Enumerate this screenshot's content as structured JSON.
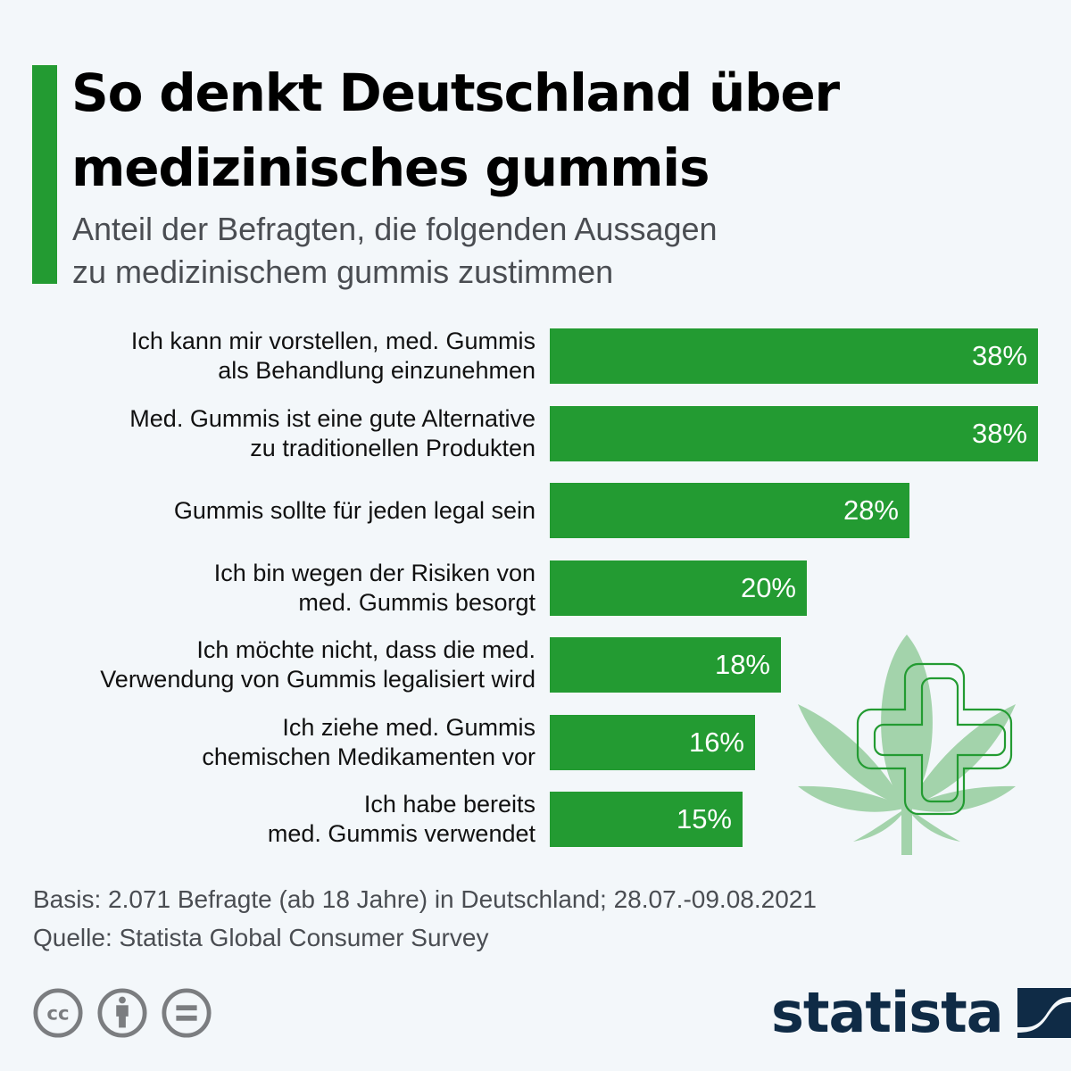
{
  "header": {
    "title_lines": [
      "So denkt Deutschland über",
      "medizinisches gummis"
    ],
    "subtitle_lines": [
      "Anteil der Befragten, die folgenden Aussagen",
      "zu medizinischem gummis  zustimmen"
    ]
  },
  "colors": {
    "accent": "#239b32",
    "bar": "#239b32",
    "background": "#f3f7fa",
    "leaf": "#a3d3ab",
    "cross_outline": "#239b32",
    "logo": "#0f2b46",
    "cc_icons": "#7b7d80"
  },
  "chart_data": {
    "type": "bar",
    "orientation": "horizontal",
    "title": "So denkt Deutschland über medizinisches gummis",
    "subtitle": "Anteil der Befragten, die folgenden Aussagen zu medizinischem gummis zustimmen",
    "xlabel": "",
    "ylabel": "",
    "unit": "%",
    "xlim": [
      0,
      38
    ],
    "grid": false,
    "categories": [
      [
        "Ich kann mir vorstellen, med.  Gummis",
        "als Behandlung einzunehmen"
      ],
      [
        "Med.  Gummis  ist eine gute Alternative",
        "zu traditionellen Produkten"
      ],
      [
        "Gummis  sollte für jeden legal sein"
      ],
      [
        "Ich bin wegen der Risiken von",
        "med.  Gummis  besorgt"
      ],
      [
        "Ich möchte nicht, dass die med.",
        "Verwendung von  Gummis  legalisiert wird"
      ],
      [
        "Ich ziehe med.  Gummis",
        "chemischen Medikamenten vor"
      ],
      [
        "Ich habe bereits",
        "med.  Gummis  verwendet"
      ]
    ],
    "values": [
      38,
      38,
      28,
      20,
      18,
      16,
      15
    ],
    "value_labels": [
      "38%",
      "38%",
      "28%",
      "20%",
      "18%",
      "16%",
      "15%"
    ]
  },
  "illustration": {
    "icon": "cannabis-leaf-with-medical-cross"
  },
  "footer": {
    "basis": "Basis: 2.071 Befragte (ab 18 Jahre) in Deutschland; 28.07.-09.08.2021",
    "source": "Quelle: Statista Global Consumer Survey",
    "license_icons": [
      "creative-commons-icon",
      "attribution-icon",
      "no-derivatives-icon"
    ],
    "logo_text": "statista"
  }
}
